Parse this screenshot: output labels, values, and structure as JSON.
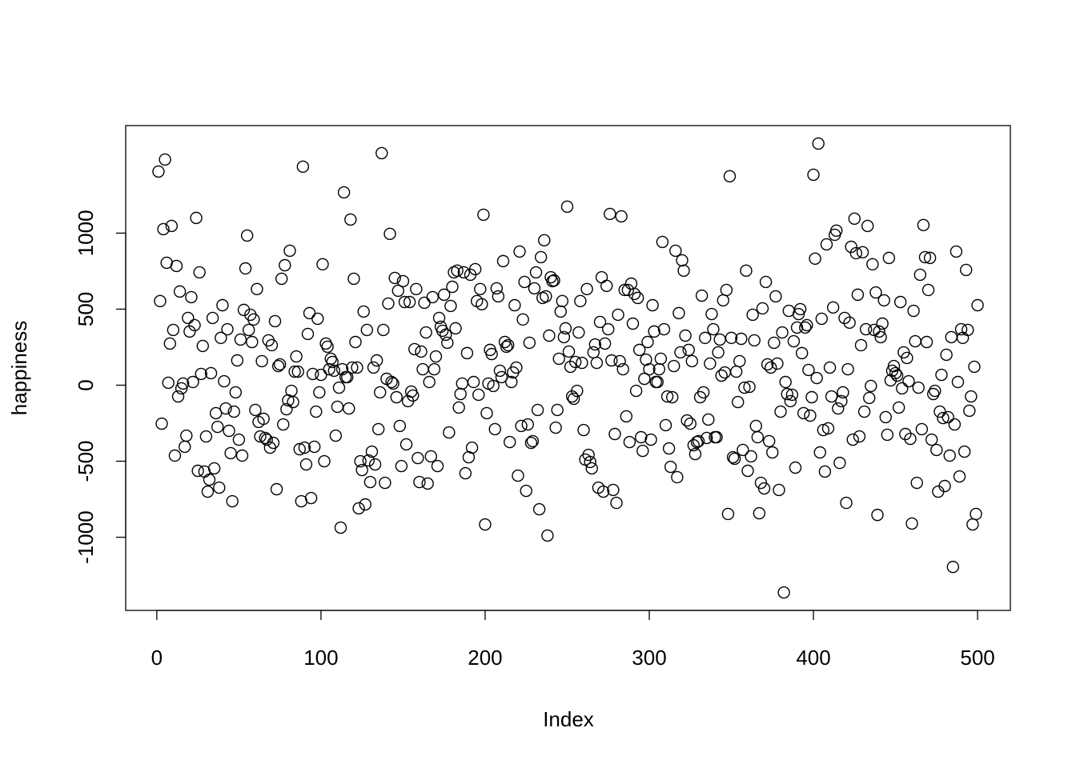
{
  "chart_data": {
    "type": "scatter",
    "xlabel": "Index",
    "ylabel": "happiness",
    "xlim": [
      -18.96,
      519.96
    ],
    "ylim": [
      -1481,
      1707
    ],
    "xticks": [
      0,
      100,
      200,
      300,
      400,
      500
    ],
    "yticks": [
      -1000,
      -500,
      0,
      500,
      1000
    ],
    "color": "#000000",
    "grid": false,
    "x": [
      1,
      2,
      3,
      4,
      5,
      6,
      7,
      8,
      9,
      10,
      11,
      12,
      13,
      14,
      15,
      16,
      17,
      18,
      19,
      20,
      21,
      22,
      23,
      24,
      25,
      26,
      27,
      28,
      29,
      30,
      31,
      32,
      33,
      34,
      35,
      36,
      37,
      38,
      39,
      40,
      41,
      42,
      43,
      44,
      45,
      46,
      47,
      48,
      49,
      50,
      51,
      52,
      53,
      54,
      55,
      56,
      57,
      58,
      59,
      60,
      61,
      62,
      63,
      64,
      65,
      66,
      67,
      68,
      69,
      70,
      71,
      72,
      73,
      74,
      75,
      76,
      77,
      78,
      79,
      80,
      81,
      82,
      83,
      84,
      85,
      86,
      87,
      88,
      89,
      90,
      91,
      92,
      93,
      94,
      95,
      96,
      97,
      98,
      99,
      100,
      101,
      102,
      103,
      104,
      105,
      106,
      107,
      108,
      109,
      110,
      111,
      112,
      113,
      114,
      115,
      116,
      117,
      118,
      119,
      120,
      121,
      122,
      123,
      124,
      125,
      126,
      127,
      128,
      129,
      130,
      131,
      132,
      133,
      134,
      135,
      136,
      137,
      138,
      139,
      140,
      141,
      142,
      143,
      144,
      145,
      146,
      147,
      148,
      149,
      150,
      151,
      152,
      153,
      154,
      155,
      156,
      157,
      158,
      159,
      160,
      161,
      162,
      163,
      164,
      165,
      166,
      167,
      168,
      169,
      170,
      171,
      172,
      173,
      174,
      175,
      176,
      177,
      178,
      179,
      180,
      181,
      182,
      183,
      184,
      185,
      186,
      187,
      188,
      189,
      190,
      191,
      192,
      193,
      194,
      195,
      196,
      197,
      198,
      199,
      200,
      201,
      202,
      203,
      204,
      205,
      206,
      207,
      208,
      209,
      210,
      211,
      212,
      213,
      214,
      215,
      216,
      217,
      218,
      219,
      220,
      221,
      222,
      223,
      224,
      225,
      226,
      227,
      228,
      229,
      230,
      231,
      232,
      233,
      234,
      235,
      236,
      237,
      238,
      239,
      240,
      241,
      242,
      243,
      244,
      245,
      246,
      247,
      248,
      249,
      250,
      251,
      252,
      253,
      254,
      255,
      256,
      257,
      258,
      259,
      260,
      261,
      262,
      263,
      264,
      265,
      266,
      267,
      268,
      269,
      270,
      271,
      272,
      273,
      274,
      275,
      276,
      277,
      278,
      279,
      280,
      281,
      282,
      283,
      284,
      285,
      286,
      287,
      288,
      289,
      290,
      291,
      292,
      293,
      294,
      295,
      296,
      297,
      298,
      299,
      300,
      301,
      302,
      303,
      304,
      305,
      306,
      307,
      308,
      309,
      310,
      311,
      312,
      313,
      314,
      315,
      316,
      317,
      318,
      319,
      320,
      321,
      322,
      323,
      324,
      325,
      326,
      327,
      328,
      329,
      330,
      331,
      332,
      333,
      334,
      335,
      336,
      337,
      338,
      339,
      340,
      341,
      342,
      343,
      344,
      345,
      346,
      347,
      348,
      349,
      350,
      351,
      352,
      353,
      354,
      355,
      356,
      357,
      358,
      359,
      360,
      361,
      362,
      363,
      364,
      365,
      366,
      367,
      368,
      369,
      370,
      371,
      372,
      373,
      374,
      375,
      376,
      377,
      378,
      379,
      380,
      381,
      382,
      383,
      384,
      385,
      386,
      387,
      388,
      389,
      390,
      391,
      392,
      393,
      394,
      395,
      396,
      397,
      398,
      399,
      400,
      401,
      402,
      403,
      404,
      405,
      406,
      407,
      408,
      409,
      410,
      411,
      412,
      413,
      414,
      415,
      416,
      417,
      418,
      419,
      420,
      421,
      422,
      423,
      424,
      425,
      426,
      427,
      428,
      429,
      430,
      431,
      432,
      433,
      434,
      435,
      436,
      437,
      438,
      439,
      440,
      441,
      442,
      443,
      444,
      445,
      446,
      447,
      448,
      449,
      450,
      451,
      452,
      453,
      454,
      455,
      456,
      457,
      458,
      459,
      460,
      461,
      462,
      463,
      464,
      465,
      466,
      467,
      468,
      469,
      470,
      471,
      472,
      473,
      474,
      475,
      476,
      477,
      478,
      479,
      480,
      481,
      482,
      483,
      484,
      485,
      486,
      487,
      488,
      489,
      490,
      491,
      492,
      493,
      494,
      495,
      496,
      497,
      498,
      499,
      500
    ],
    "values": [
      1405,
      553,
      -253,
      1026,
      1484,
      805,
      16,
      274,
      1047,
      363,
      -463,
      784,
      -74,
      616,
      -21,
      11,
      -405,
      -332,
      442,
      353,
      579,
      21,
      395,
      1100,
      -563,
      742,
      74,
      258,
      -568,
      -337,
      -700,
      -621,
      79,
      442,
      -547,
      -184,
      -274,
      -674,
      311,
      526,
      26,
      -153,
      368,
      -300,
      -447,
      -763,
      -174,
      -47,
      163,
      -358,
      300,
      -463,
      495,
      768,
      984,
      363,
      463,
      284,
      432,
      -163,
      632,
      -242,
      -337,
      158,
      -221,
      -347,
      -358,
      295,
      -411,
      263,
      -379,
      421,
      -684,
      126,
      137,
      700,
      -258,
      789,
      -158,
      -100,
      884,
      -37,
      -111,
      89,
      189,
      89,
      -421,
      -763,
      1437,
      -411,
      -521,
      337,
      474,
      -742,
      74,
      -405,
      -174,
      437,
      -47,
      68,
      795,
      -500,
      274,
      253,
      105,
      174,
      153,
      95,
      -332,
      -142,
      -16,
      -937,
      105,
      1268,
      53,
      53,
      -153,
      1089,
      116,
      700,
      284,
      116,
      -810,
      -500,
      -558,
      484,
      -784,
      363,
      -495,
      -637,
      -437,
      116,
      -521,
      163,
      -289,
      -47,
      1526,
      363,
      -642,
      42,
      537,
      995,
      21,
      11,
      705,
      -79,
      621,
      -268,
      -532,
      684,
      547,
      -389,
      -105,
      547,
      -42,
      -68,
      237,
      632,
      -479,
      -637,
      221,
      105,
      542,
      347,
      -647,
      21,
      -468,
      579,
      105,
      189,
      -532,
      442,
      384,
      358,
      595,
      332,
      279,
      -311,
      521,
      647,
      742,
      374,
      753,
      -147,
      -58,
      11,
      742,
      -579,
      211,
      -474,
      726,
      -411,
      21,
      763,
      553,
      -63,
      632,
      532,
      1121,
      -916,
      -184,
      11,
      232,
      205,
      -5,
      -289,
      637,
      584,
      95,
      53,
      816,
      284,
      253,
      263,
      -374,
      21,
      84,
      526,
      116,
      -595,
      879,
      -268,
      432,
      679,
      -695,
      -258,
      279,
      -379,
      -368,
      637,
      742,
      -163,
      -816,
      842,
      574,
      953,
      584,
      -989,
      326,
      710,
      684,
      689,
      -279,
      -163,
      174,
      484,
      553,
      316,
      374,
      1174,
      221,
      121,
      -74,
      -89,
      153,
      -37,
      347,
      553,
      147,
      -295,
      -489,
      632,
      -458,
      -505,
      -547,
      216,
      268,
      147,
      -674,
      416,
      710,
      -700,
      274,
      653,
      368,
      1126,
      163,
      -689,
      -321,
      -774,
      463,
      158,
      1110,
      105,
      626,
      -205,
      626,
      -374,
      668,
      405,
      600,
      -37,
      574,
      232,
      -342,
      -432,
      42,
      168,
      284,
      105,
      -358,
      526,
      353,
      21,
      21,
      105,
      174,
      942,
      368,
      -263,
      -74,
      -416,
      -537,
      -79,
      126,
      884,
      -605,
      474,
      216,
      821,
      753,
      326,
      -232,
      232,
      -253,
      158,
      -395,
      -453,
      -374,
      -368,
      -79,
      589,
      -47,
      311,
      -347,
      -226,
      142,
      468,
      368,
      -342,
      -342,
      216,
      300,
      63,
      558,
      84,
      626,
      -847,
      1374,
      311,
      -474,
      -484,
      89,
      -111,
      158,
      305,
      -426,
      -16,
      753,
      -563,
      -11,
      -468,
      463,
      295,
      -268,
      -342,
      -842,
      -642,
      505,
      -679,
      679,
      137,
      -368,
      116,
      -442,
      279,
      584,
      142,
      -689,
      -174,
      347,
      -1363,
      21,
      -58,
      489,
      -105,
      -63,
      289,
      -542,
      379,
      468,
      500,
      211,
      -184,
      379,
      395,
      100,
      -200,
      -79,
      1384,
      832,
      47,
      1589,
      -442,
      437,
      -295,
      -568,
      926,
      -284,
      116,
      -74,
      511,
      989,
      1016,
      -153,
      -511,
      -105,
      -47,
      442,
      -774,
      105,
      411,
      910,
      -358,
      1095,
      868,
      595,
      -337,
      263,
      874,
      -174,
      368,
      1047,
      -84,
      -5,
      795,
      363,
      610,
      -853,
      353,
      316,
      405,
      558,
      -210,
      -326,
      837,
      32,
      95,
      126,
      79,
      63,
      -147,
      547,
      -21,
      216,
      -321,
      179,
      26,
      -353,
      -910,
      489,
      289,
      -642,
      -16,
      726,
      -289,
      1053,
      842,
      284,
      626,
      837,
      -358,
      -58,
      -37,
      -426,
      -700,
      -174,
      68,
      -216,
      -663,
      200,
      -210,
      -463,
      316,
      -1195,
      -258,
      879,
      21,
      -600,
      368,
      311,
      -437,
      758,
      363,
      -168,
      -74,
      -916,
      121,
      -847,
      526
    ]
  }
}
